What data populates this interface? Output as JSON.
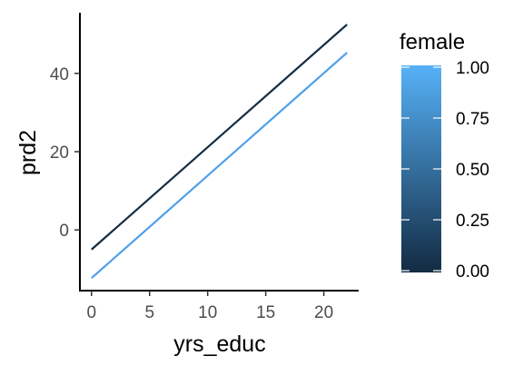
{
  "chart_data": {
    "type": "line",
    "title": "",
    "xlabel": "yrs_educ",
    "ylabel": "prd2",
    "xlim": [
      -1,
      23
    ],
    "ylim": [
      -15.5,
      55.5
    ],
    "x_ticks": [
      0,
      5,
      10,
      15,
      20
    ],
    "y_ticks": [
      0,
      20,
      40
    ],
    "x_tick_labels": [
      "0",
      "5",
      "10",
      "15",
      "20"
    ],
    "y_tick_labels": [
      "0",
      "20",
      "40"
    ],
    "grid": false,
    "legend": {
      "title": "female",
      "placement": "right",
      "type": "colorbar",
      "ticks": [
        0,
        0.25,
        0.5,
        0.75,
        1
      ],
      "tick_labels": [
        "0.00",
        "0.25",
        "0.50",
        "0.75",
        "1.00"
      ],
      "color_low": "#132B43",
      "color_high": "#56B1F7"
    },
    "series": [
      {
        "female": 0,
        "color": "#132B43",
        "x": [
          0,
          22
        ],
        "y": [
          -5,
          52.5
        ]
      },
      {
        "female": 1,
        "color": "#4EA0EB",
        "x": [
          0,
          22
        ],
        "y": [
          -12.3,
          45.3
        ]
      }
    ]
  }
}
